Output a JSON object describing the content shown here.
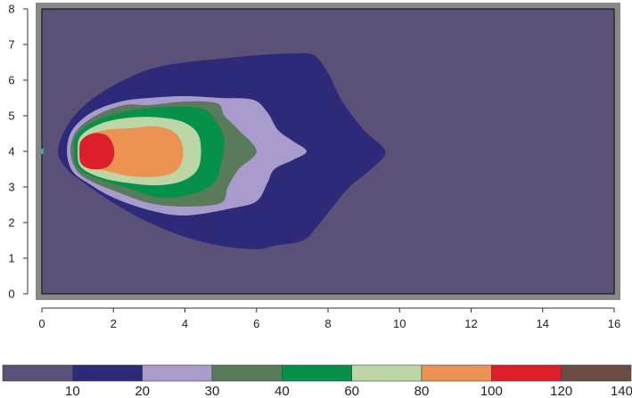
{
  "chart_data": {
    "type": "contour",
    "title": "",
    "xlabel": "",
    "ylabel": "",
    "xlim": [
      0,
      16
    ],
    "ylim": [
      0,
      8
    ],
    "x_ticks": [
      "0",
      "2",
      "4",
      "6",
      "8",
      "10",
      "12",
      "14",
      "16"
    ],
    "y_ticks": [
      "0",
      "1",
      "2",
      "3",
      "4",
      "5",
      "6",
      "7",
      "8"
    ],
    "grid": false,
    "legend_position": "bottom",
    "levels": [
      0,
      10,
      20,
      30,
      40,
      60,
      80,
      100,
      120,
      140
    ],
    "level_labels": [
      "10",
      "20",
      "30",
      "40",
      "60",
      "80",
      "100",
      "120",
      "140"
    ],
    "level_colors": [
      "#5b5078",
      "#2e2a7a",
      "#a99bcc",
      "#5a7a5c",
      "#05914a",
      "#bcd6a6",
      "#ec9252",
      "#dc1f2b",
      "#6a4c44"
    ],
    "frame_color": "#888888",
    "source_point": {
      "x": 0.0,
      "y": 4.0,
      "color": "#4aa0a0"
    },
    "contours": [
      {
        "level": 10,
        "points": [
          [
            0.45,
            4.0
          ],
          [
            0.7,
            4.7
          ],
          [
            1.2,
            5.3
          ],
          [
            2,
            5.85
          ],
          [
            3,
            6.3
          ],
          [
            4,
            6.5
          ],
          [
            5,
            6.6
          ],
          [
            6,
            6.7
          ],
          [
            7,
            6.75
          ],
          [
            7.6,
            6.7
          ],
          [
            8,
            6.2
          ],
          [
            8.4,
            5.4
          ],
          [
            9,
            4.6
          ],
          [
            9.6,
            4.0
          ],
          [
            9.2,
            3.5
          ],
          [
            8.6,
            3.0
          ],
          [
            8.1,
            2.4
          ],
          [
            7.7,
            1.9
          ],
          [
            7.3,
            1.5
          ],
          [
            6.5,
            1.35
          ],
          [
            6,
            1.25
          ],
          [
            5,
            1.35
          ],
          [
            4,
            1.6
          ],
          [
            3,
            2.0
          ],
          [
            2,
            2.55
          ],
          [
            1.2,
            3.1
          ],
          [
            0.7,
            3.5
          ]
        ]
      },
      {
        "level": 20,
        "points": [
          [
            0.7,
            4.0
          ],
          [
            0.85,
            4.6
          ],
          [
            1.4,
            5.1
          ],
          [
            2.2,
            5.4
          ],
          [
            3,
            5.5
          ],
          [
            4,
            5.55
          ],
          [
            5,
            5.5
          ],
          [
            5.9,
            5.45
          ],
          [
            6.3,
            5.1
          ],
          [
            6.6,
            4.6
          ],
          [
            7,
            4.3
          ],
          [
            7.4,
            4.0
          ],
          [
            7,
            3.75
          ],
          [
            6.5,
            3.5
          ],
          [
            6.3,
            3.1
          ],
          [
            6,
            2.6
          ],
          [
            5.3,
            2.4
          ],
          [
            4,
            2.2
          ],
          [
            3,
            2.35
          ],
          [
            2,
            2.7
          ],
          [
            1.3,
            3.1
          ],
          [
            0.85,
            3.45
          ]
        ]
      },
      {
        "level": 30,
        "points": [
          [
            0.8,
            4.0
          ],
          [
            0.95,
            4.55
          ],
          [
            1.5,
            5.0
          ],
          [
            2.3,
            5.3
          ],
          [
            3,
            5.3
          ],
          [
            4,
            5.4
          ],
          [
            4.9,
            5.35
          ],
          [
            5.1,
            5.0
          ],
          [
            5.5,
            4.6
          ],
          [
            6,
            4.0
          ],
          [
            5.5,
            3.5
          ],
          [
            5.2,
            3.0
          ],
          [
            5,
            2.55
          ],
          [
            4,
            2.45
          ],
          [
            3,
            2.55
          ],
          [
            2,
            2.9
          ],
          [
            1.3,
            3.2
          ],
          [
            0.95,
            3.5
          ]
        ]
      },
      {
        "level": 40,
        "points": [
          [
            0.9,
            4.0
          ],
          [
            1.0,
            4.5
          ],
          [
            1.6,
            4.9
          ],
          [
            2.5,
            5.15
          ],
          [
            3.5,
            5.25
          ],
          [
            4.5,
            5.2
          ],
          [
            4.9,
            4.8
          ],
          [
            5.1,
            4.3
          ],
          [
            5.0,
            3.6
          ],
          [
            4.8,
            3.1
          ],
          [
            4.2,
            2.8
          ],
          [
            3.3,
            2.7
          ],
          [
            2.3,
            3.0
          ],
          [
            1.5,
            3.25
          ],
          [
            1.0,
            3.55
          ]
        ]
      },
      {
        "level": 60,
        "points": [
          [
            1.0,
            4.0
          ],
          [
            1.1,
            4.45
          ],
          [
            1.7,
            4.8
          ],
          [
            2.5,
            4.95
          ],
          [
            3.3,
            4.95
          ],
          [
            4.0,
            4.8
          ],
          [
            4.4,
            4.4
          ],
          [
            4.4,
            3.6
          ],
          [
            4.0,
            3.2
          ],
          [
            3.3,
            3.05
          ],
          [
            2.5,
            3.1
          ],
          [
            1.7,
            3.25
          ],
          [
            1.1,
            3.55
          ]
        ]
      },
      {
        "level": 80,
        "points": [
          [
            1.05,
            4.0
          ],
          [
            1.2,
            4.4
          ],
          [
            1.8,
            4.6
          ],
          [
            2.5,
            4.65
          ],
          [
            3.2,
            4.7
          ],
          [
            3.75,
            4.5
          ],
          [
            3.95,
            4.0
          ],
          [
            3.8,
            3.5
          ],
          [
            3.3,
            3.3
          ],
          [
            2.5,
            3.3
          ],
          [
            1.8,
            3.45
          ],
          [
            1.2,
            3.6
          ]
        ]
      },
      {
        "level": 100,
        "points": [
          [
            1.05,
            4.0
          ],
          [
            1.1,
            4.3
          ],
          [
            1.4,
            4.5
          ],
          [
            1.8,
            4.45
          ],
          [
            2.0,
            4.15
          ],
          [
            2.0,
            3.8
          ],
          [
            1.8,
            3.55
          ],
          [
            1.4,
            3.5
          ],
          [
            1.1,
            3.65
          ]
        ]
      },
      {
        "level": 120,
        "points": []
      }
    ]
  }
}
